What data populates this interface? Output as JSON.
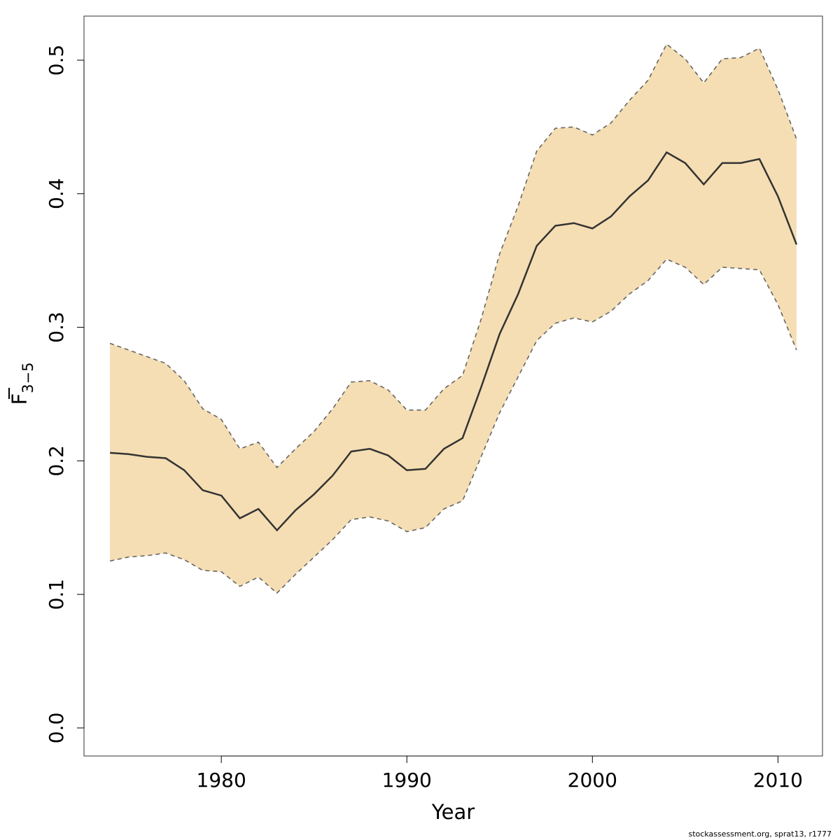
{
  "chart_data": {
    "type": "area",
    "x": [
      1974,
      1975,
      1976,
      1977,
      1978,
      1979,
      1980,
      1981,
      1982,
      1983,
      1984,
      1985,
      1986,
      1987,
      1988,
      1989,
      1990,
      1991,
      1992,
      1993,
      1994,
      1995,
      1996,
      1997,
      1998,
      1999,
      2000,
      2001,
      2002,
      2003,
      2004,
      2005,
      2006,
      2007,
      2008,
      2009,
      2010,
      2011
    ],
    "series": [
      {
        "role": "estimate",
        "values": [
          0.206,
          0.205,
          0.203,
          0.202,
          0.193,
          0.178,
          0.174,
          0.157,
          0.164,
          0.148,
          0.163,
          0.175,
          0.189,
          0.207,
          0.209,
          0.204,
          0.193,
          0.194,
          0.209,
          0.217,
          0.255,
          0.295,
          0.325,
          0.361,
          0.376,
          0.378,
          0.374,
          0.383,
          0.398,
          0.41,
          0.431,
          0.423,
          0.407,
          0.423,
          0.423,
          0.426,
          0.398,
          0.362
        ]
      },
      {
        "role": "upper",
        "values": [
          0.288,
          0.283,
          0.278,
          0.273,
          0.26,
          0.239,
          0.231,
          0.209,
          0.214,
          0.195,
          0.209,
          0.222,
          0.239,
          0.259,
          0.26,
          0.253,
          0.238,
          0.238,
          0.254,
          0.264,
          0.306,
          0.355,
          0.391,
          0.432,
          0.449,
          0.45,
          0.444,
          0.453,
          0.47,
          0.485,
          0.512,
          0.501,
          0.483,
          0.501,
          0.502,
          0.509,
          0.478,
          0.441
        ]
      },
      {
        "role": "lower",
        "values": [
          0.125,
          0.128,
          0.129,
          0.131,
          0.126,
          0.118,
          0.117,
          0.106,
          0.113,
          0.101,
          0.115,
          0.128,
          0.141,
          0.156,
          0.158,
          0.155,
          0.147,
          0.15,
          0.164,
          0.17,
          0.203,
          0.236,
          0.263,
          0.29,
          0.303,
          0.307,
          0.304,
          0.312,
          0.325,
          0.335,
          0.351,
          0.345,
          0.332,
          0.345,
          0.344,
          0.343,
          0.317,
          0.283
        ]
      }
    ],
    "xlabel": "Year",
    "ylabel_main": "F",
    "ylabel_sub": "3−5",
    "xlim": [
      1972.6,
      2012.4
    ],
    "ylim": [
      -0.021,
      0.533
    ],
    "xticks": [
      "1980",
      "1990",
      "2000",
      "2010"
    ],
    "yticks": [
      "0.0",
      "0.1",
      "0.2",
      "0.3",
      "0.4",
      "0.5"
    ],
    "grid": false,
    "colors": {
      "band": "#f5deb3",
      "line": "#333333",
      "bound": "#666666"
    }
  },
  "footer": {
    "source": "stockassessment.org, sprat13, r1777"
  }
}
